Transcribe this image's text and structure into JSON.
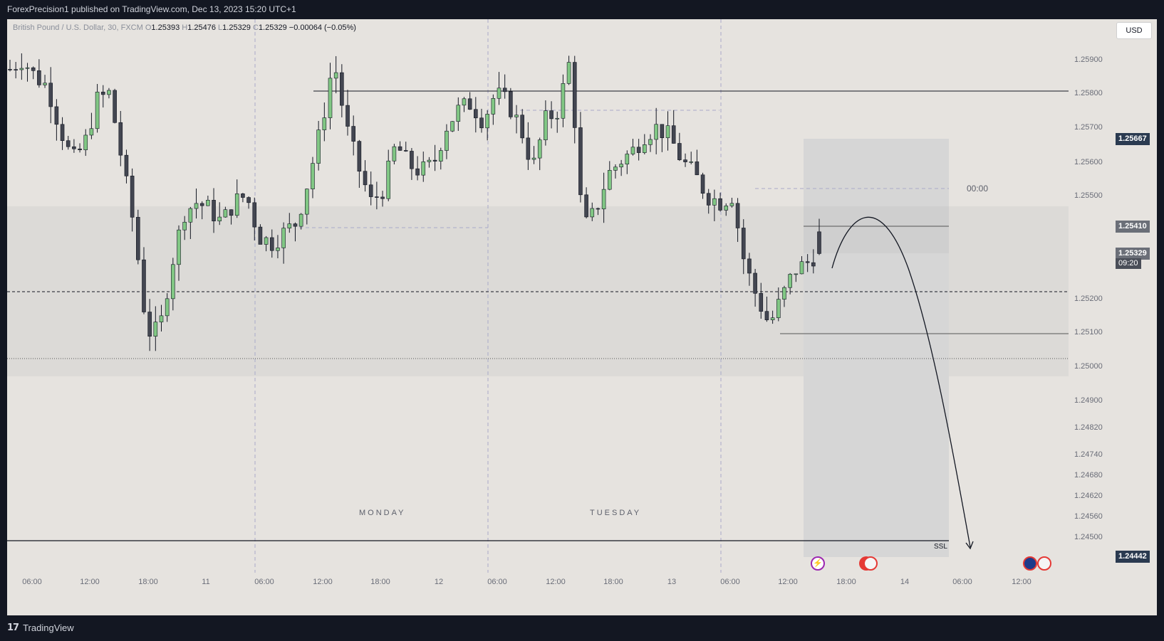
{
  "header": {
    "published_text": "ForexPrecision1 published on TradingView.com, Dec 13, 2023 15:20 UTC+1"
  },
  "legend": {
    "symbol": "British Pound / U.S. Dollar, 30, FXCM",
    "o_key": "O",
    "o": "1.25393",
    "h_key": "H",
    "h": "1.25476",
    "l_key": "L",
    "l": "1.25329",
    "c_key": "C",
    "c": "1.25329",
    "change": "−0.00064 (−0.05%)"
  },
  "currency_button": "USD",
  "day_labels": {
    "monday": "MONDAY",
    "tuesday": "TUESDAY"
  },
  "annotations": {
    "ssl": "SSL",
    "time_label": "00:00"
  },
  "price_tags": {
    "box_top": "1.25667",
    "level": "1.25410",
    "last": "1.25329",
    "countdown": "09:20",
    "ssl_level": "1.24442"
  },
  "footer": {
    "brand": "TradingView"
  },
  "colors": {
    "bull": "#81c784",
    "bear": "#434651",
    "background": "#e6e3df",
    "box_tag": "#2a3a50",
    "last_tag": "#6b6f78"
  },
  "chart_data": {
    "type": "candlestick",
    "title": "",
    "symbol": "GBPUSD",
    "timeframe": "30",
    "x_tick_labels": [
      "06:00",
      "12:00",
      "18:00",
      "11",
      "06:00",
      "12:00",
      "18:00",
      "12",
      "06:00",
      "12:00",
      "18:00",
      "13",
      "06:00",
      "12:00",
      "18:00",
      "14",
      "06:00",
      "12:00"
    ],
    "y_tick_labels": [
      "1.25900",
      "1.25800",
      "1.25700",
      "1.25600",
      "1.25500",
      "1.25200",
      "1.25100",
      "1.25000",
      "1.24900",
      "1.24820",
      "1.24740",
      "1.24680",
      "1.24620",
      "1.24560",
      "1.24500"
    ],
    "y_ticks": [
      1.259,
      1.258,
      1.257,
      1.256,
      1.255,
      1.252,
      1.251,
      1.25,
      1.249,
      1.2482,
      1.2474,
      1.2468,
      1.2462,
      1.2456,
      1.245
    ],
    "close_path": [
      1.2587,
      1.259,
      1.2585,
      1.2582,
      1.257,
      1.256,
      1.2565,
      1.2578,
      1.258,
      1.256,
      1.254,
      1.251,
      1.251,
      1.253,
      1.2545,
      1.2548,
      1.2546,
      1.2542,
      1.2548,
      1.255,
      1.2538,
      1.2536,
      1.2539,
      1.2542,
      1.2555,
      1.257,
      1.259,
      1.257,
      1.2558,
      1.2548,
      1.2552,
      1.2565,
      1.2559,
      1.2557,
      1.2559,
      1.257,
      1.2575,
      1.2577,
      1.2572,
      1.258,
      1.2577,
      1.257,
      1.2558,
      1.2572,
      1.2575,
      1.259,
      1.254,
      1.2545,
      1.2556,
      1.256,
      1.2563,
      1.2568,
      1.257,
      1.2567,
      1.256,
      1.2556,
      1.255,
      1.2548,
      1.255,
      1.253,
      1.252,
      1.2512,
      1.252,
      1.2528,
      1.253,
      1.2534
    ]
  }
}
